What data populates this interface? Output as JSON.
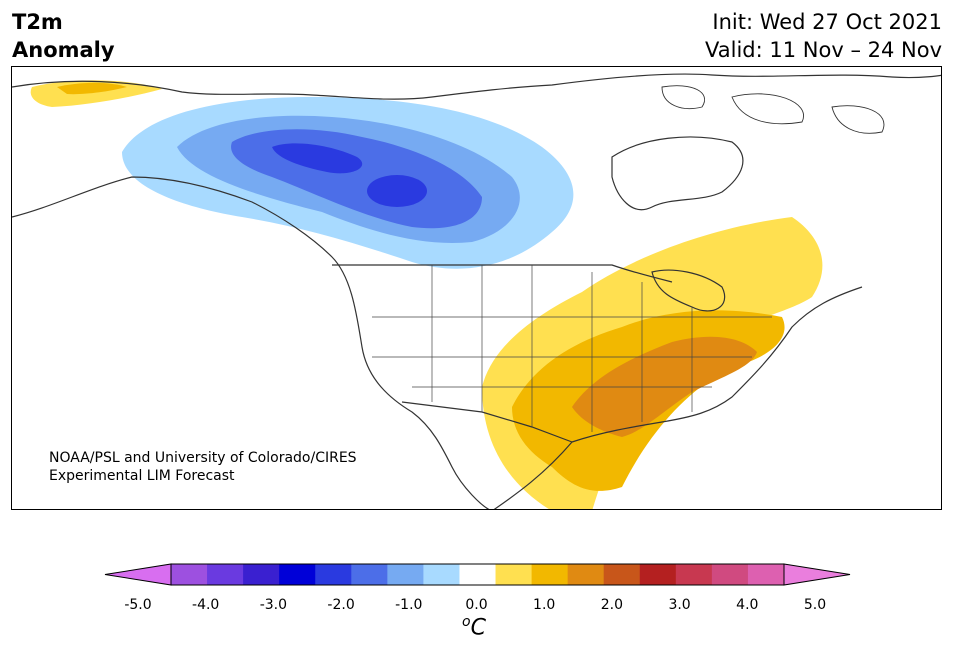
{
  "header": {
    "title_line1": "T2m",
    "title_line2": "Anomaly",
    "init": "Init: Wed 27 Oct 2021",
    "valid": "Valid: 11 Nov – 24 Nov"
  },
  "map": {
    "region": "North America",
    "credit_line1": "NOAA/PSL and University of Colorado/CIRES",
    "credit_line2": "Experimental LIM Forecast"
  },
  "colorbar": {
    "ticks": [
      "-5.0",
      "-4.0",
      "-3.0",
      "-2.0",
      "-1.0",
      "0.0",
      "1.0",
      "2.0",
      "3.0",
      "4.0",
      "5.0"
    ],
    "units_sup": "o",
    "units_main": "C",
    "colors": [
      "#d86ef0",
      "#9d50e0",
      "#6a3ae0",
      "#3a20d0",
      "#0000d8",
      "#2a3ae0",
      "#4c6ee8",
      "#76aaf2",
      "#a8daff",
      "#ffffff",
      "#ffe050",
      "#f2b800",
      "#e08a12",
      "#c8561a",
      "#b42020",
      "#c83850",
      "#d04a80",
      "#dd60b0",
      "#ea7edd"
    ],
    "anomaly_levels": {
      "cold_center_max": -2.5,
      "warm_center_max": 2.5
    }
  }
}
